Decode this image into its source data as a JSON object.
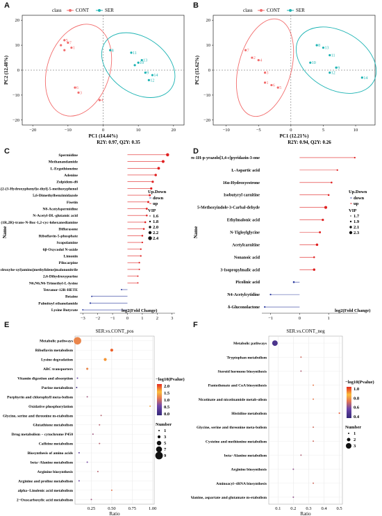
{
  "panel_labels": {
    "A": "A",
    "B": "B",
    "C": "C",
    "D": "D",
    "E": "E",
    "F": "F"
  },
  "colors": {
    "cont": "#f26b6b",
    "ser": "#1bb3b3",
    "text": "#111111"
  },
  "pca": [
    {
      "id": "A",
      "legend_title": "class",
      "legend_cont": "CONT",
      "legend_ser": "SER",
      "xlabel": "PC1 (14.44%)",
      "ylabel": "PC2 (12.48%)",
      "stats": "R2Y: 0.97, Q2Y: 0.35",
      "x_ticks": [
        "−20",
        "−10",
        "0",
        "10",
        "20"
      ],
      "y_ticks": [
        "20",
        "10",
        "0",
        "−10",
        "−20"
      ],
      "cont_points": [
        {
          "label": "5",
          "x": -11,
          "y": 12
        },
        {
          "label": "7",
          "x": -10,
          "y": 11
        },
        {
          "label": "1",
          "x": -9,
          "y": 9
        },
        {
          "label": "6",
          "x": -8,
          "y": -7
        },
        {
          "label": "3",
          "x": -7,
          "y": -9
        },
        {
          "label": "4",
          "x": -1,
          "y": -12
        },
        {
          "label": "",
          "x": -12,
          "y": 10
        },
        {
          "label": "",
          "x": -11,
          "y": 8
        }
      ],
      "ser_points": [
        {
          "label": "8",
          "x": 2,
          "y": 8
        },
        {
          "label": "11",
          "x": 8,
          "y": 7
        },
        {
          "label": "13",
          "x": 11,
          "y": 4
        },
        {
          "label": "10",
          "x": 10,
          "y": 3
        },
        {
          "label": "9",
          "x": 12,
          "y": -1
        },
        {
          "label": "14",
          "x": 14,
          "y": -2
        },
        {
          "label": "12",
          "x": 13,
          "y": -4
        },
        {
          "label": "",
          "x": 9,
          "y": 2
        }
      ]
    },
    {
      "id": "B",
      "legend_title": "class",
      "legend_cont": "CONT",
      "legend_ser": "SER",
      "xlabel": "PC1 (12.21%)",
      "ylabel": "PC2 (15.62%)",
      "stats": "R2Y: 0.94, Q2Y: 0.26",
      "x_ticks": [
        "−10",
        "−5",
        "0",
        "5",
        "10"
      ],
      "y_ticks": [
        "20",
        "10",
        "0",
        "−10",
        "−20"
      ],
      "cont_points": [
        {
          "label": "7",
          "x": -7,
          "y": 8
        },
        {
          "label": "2",
          "x": -6,
          "y": 5
        },
        {
          "label": "4",
          "x": -5,
          "y": 4
        },
        {
          "label": "3",
          "x": -4,
          "y": -1
        },
        {
          "label": "1",
          "x": -4,
          "y": -5
        },
        {
          "label": "6",
          "x": -3,
          "y": -6
        },
        {
          "label": "5",
          "x": -2,
          "y": -7
        }
      ],
      "ser_points": [
        {
          "label": "8",
          "x": 4,
          "y": 10
        },
        {
          "label": "13",
          "x": 5,
          "y": 9
        },
        {
          "label": "11",
          "x": 6,
          "y": 6
        },
        {
          "label": "10",
          "x": 3,
          "y": 3
        },
        {
          "label": "9",
          "x": 7,
          "y": 1
        },
        {
          "label": "12",
          "x": 6,
          "y": -1
        },
        {
          "label": "14",
          "x": 11,
          "y": -3
        }
      ]
    }
  ],
  "lollipop": [
    {
      "id": "C",
      "y_axis_label": "Name",
      "x_axis_label": "log2(Fold Change)",
      "x_ticks": [
        "−3",
        "−2",
        "−1",
        "0",
        "1",
        "2",
        "3"
      ],
      "x_range": [
        -3.2,
        3.2
      ],
      "legend_updown_title": "Up.Down",
      "legend_down": "down",
      "legend_up": "up",
      "legend_vip_title": "VIP",
      "vip_values": [
        "1.6",
        "1.8",
        "2.0",
        "2.2",
        "2.4"
      ],
      "items": [
        {
          "name": "Spermidine",
          "value": 2.7,
          "vip": 2.4
        },
        {
          "name": "Methanandamide",
          "value": 2.4,
          "vip": 2.3
        },
        {
          "name": "L-Ergothioneine",
          "value": 2.1,
          "vip": 2.2
        },
        {
          "name": "Adenine",
          "value": 1.9,
          "vip": 2.1
        },
        {
          "name": "Zolpidem-d6",
          "value": 1.7,
          "vip": 2.0
        },
        {
          "name": "3-[2-(3-Hydroxyphenyl)e-thyl]-5-methoxyphenol",
          "value": 1.6,
          "vip": 2.0
        },
        {
          "name": "5,6-Dimethylbenzimidazole",
          "value": 1.5,
          "vip": 1.9
        },
        {
          "name": "Fisetin",
          "value": 1.4,
          "vip": 1.9
        },
        {
          "name": "N8-Acetylspermidine",
          "value": 1.3,
          "vip": 1.9
        },
        {
          "name": "N-Acetyl-DL-glutamic acid",
          "value": 1.3,
          "vip": 1.8
        },
        {
          "name": "(1R,2R)-trans-N-Boc-1,2-cyc-lohexanediamine",
          "value": 1.2,
          "vip": 1.8
        },
        {
          "name": "Diflorasone",
          "value": 1.1,
          "vip": 1.8
        },
        {
          "name": "Riboflavin-5-phosphate",
          "value": 1.0,
          "vip": 1.8
        },
        {
          "name": "Scopolamine",
          "value": 1.0,
          "vip": 1.7
        },
        {
          "name": "6β-Oxycodol N-oxide",
          "value": 0.9,
          "vip": 1.7
        },
        {
          "name": "Limonin",
          "value": 0.9,
          "vip": 1.7
        },
        {
          "name": "Pilocarpine",
          "value": 0.8,
          "vip": 1.7
        },
        {
          "name": "2-[[methyl(2,3,4,5,6-pentahydroxyhe-xyl)amino]methylidene]malononitrile",
          "value": 0.8,
          "vip": 1.6
        },
        {
          "name": "2,6-Dihydroxypurine",
          "value": 0.7,
          "vip": 1.6
        },
        {
          "name": "N6,N6,N6-Trimethyl-L-lysine",
          "value": 0.7,
          "vip": 1.6
        },
        {
          "name": "Tetranor-12R-HETE",
          "value": -0.4,
          "vip": 1.6
        },
        {
          "name": "Betaine",
          "value": -2.4,
          "vip": 1.6
        },
        {
          "name": "Palmitoyl ethanolamide",
          "value": -2.5,
          "vip": 1.7
        },
        {
          "name": "Lysine Butyrate",
          "value": -3.0,
          "vip": 1.6
        }
      ]
    },
    {
      "id": "D",
      "y_axis_label": "Name",
      "x_axis_label": "log2(Fold Change)",
      "x_ticks": [
        "−1",
        "0",
        "1"
      ],
      "x_range": [
        -1.3,
        2.0
      ],
      "legend_updown_title": "Up.Down",
      "legend_down": "down",
      "legend_up": "up",
      "legend_vip_title": "VIP",
      "vip_values": [
        "1.7",
        "1.9",
        "2.1",
        "2.3"
      ],
      "items": [
        {
          "name": "4,5-diphenyl-2,3-dihydro-1H-p-yrazolo[3,4-c]pyridazin-3-one",
          "value": 1.9,
          "vip": 1.7
        },
        {
          "name": "L-Aspartic acid",
          "value": 1.3,
          "vip": 1.7
        },
        {
          "name": "16α-Hydroxyestrone",
          "value": 1.1,
          "vip": 1.8
        },
        {
          "name": "Isobutyryl carnitine",
          "value": 1.0,
          "vip": 1.8
        },
        {
          "name": "5-Methoxyindole-3-Carbal-dehyde",
          "value": 0.9,
          "vip": 2.3
        },
        {
          "name": "Ethylmalonic acid",
          "value": 0.8,
          "vip": 2.0
        },
        {
          "name": "N-Tigloylglycine",
          "value": 0.7,
          "vip": 1.9
        },
        {
          "name": "Acetylcarnitine",
          "value": 0.6,
          "vip": 2.1
        },
        {
          "name": "Nonanoic acid",
          "value": 0.5,
          "vip": 1.8
        },
        {
          "name": "3-Isopropylmalic acid",
          "value": 0.5,
          "vip": 2.1
        },
        {
          "name": "Picolinic acid",
          "value": -0.2,
          "vip": 1.8
        },
        {
          "name": "N4-Acetylcytidine",
          "value": -1.0,
          "vip": 1.7
        },
        {
          "name": "δ-Gluconolactone",
          "value": -1.2,
          "vip": 1.7
        }
      ]
    }
  ],
  "bubble": [
    {
      "id": "E",
      "title": "SER.vs.CONT_pos",
      "x_axis_label": "Ratio",
      "x_ticks": [
        "0.25",
        "0.50",
        "0.75",
        "1.00"
      ],
      "x_range": [
        0.05,
        1.02
      ],
      "color_title": "−log10(Pvalue)",
      "color_ticks": [
        "2.0",
        "1.5",
        "1.0",
        "0.5",
        "0.0"
      ],
      "color_range": [
        0,
        2.2
      ],
      "size_title": "Number",
      "size_values": [
        "1",
        "3",
        "5",
        "7",
        "9"
      ],
      "items": [
        {
          "name": "Metabolic pathways",
          "ratio": 0.08,
          "p": 1.3,
          "n": 9
        },
        {
          "name": "Riboflavin metabolism",
          "ratio": 0.5,
          "p": 2.0,
          "n": 3
        },
        {
          "name": "Lysine degradation",
          "ratio": 0.42,
          "p": 1.8,
          "n": 3
        },
        {
          "name": "ABC transporters",
          "ratio": 0.2,
          "p": 1.3,
          "n": 2
        },
        {
          "name": "Vitamin digestion and absorption",
          "ratio": 0.08,
          "p": 0.5,
          "n": 1
        },
        {
          "name": "Purine metabolism",
          "ratio": 0.07,
          "p": 0.2,
          "n": 1
        },
        {
          "name": "Porphyrin and chlorophyll meta-bolism",
          "ratio": 0.2,
          "p": 0.9,
          "n": 1
        },
        {
          "name": "Oxidative phosphorylation",
          "ratio": 0.97,
          "p": 1.5,
          "n": 1
        },
        {
          "name": "Glycine, serine and threonine m-etabolism",
          "ratio": 0.37,
          "p": 1.0,
          "n": 1
        },
        {
          "name": "Glutathione metabolism",
          "ratio": 0.35,
          "p": 1.0,
          "n": 1
        },
        {
          "name": "Drug metabolism − cytochrome P450",
          "ratio": 0.27,
          "p": 0.9,
          "n": 1
        },
        {
          "name": "Caffeine metabolism",
          "ratio": 0.35,
          "p": 1.0,
          "n": 1
        },
        {
          "name": "Biosynthesis of amino acids",
          "ratio": 0.1,
          "p": 0.5,
          "n": 1
        },
        {
          "name": "beta−Alanine metabolism",
          "ratio": 0.2,
          "p": 0.7,
          "n": 1
        },
        {
          "name": "Arginine biosynthesis",
          "ratio": 0.33,
          "p": 1.0,
          "n": 1
        },
        {
          "name": "Arginine and proline metabolism",
          "ratio": 0.1,
          "p": 0.6,
          "n": 1
        },
        {
          "name": "alpha−Linolenic acid metabolism",
          "ratio": 0.5,
          "p": 1.2,
          "n": 1
        },
        {
          "name": "2−Oxocarboxylic acid metabolism",
          "ratio": 0.25,
          "p": 0.9,
          "n": 1
        }
      ]
    },
    {
      "id": "F",
      "title": "SER.vs.CONT_neg",
      "x_axis_label": "Ratio",
      "x_ticks": [
        "0.1",
        "0.2",
        "0.3",
        "0.4",
        "0.5"
      ],
      "x_range": [
        0.04,
        0.52
      ],
      "color_title": "−log10(Pvalue)",
      "color_ticks": [
        "1.0",
        "0.8",
        "0.6",
        "0.4"
      ],
      "color_range": [
        0.3,
        1.1
      ],
      "size_title": "Number",
      "size_values": [
        "1",
        "2",
        "3"
      ],
      "items": [
        {
          "name": "Metabolic pathways",
          "ratio": 0.08,
          "p": 0.4,
          "n": 3
        },
        {
          "name": "Tryptophan metabolism",
          "ratio": 0.25,
          "p": 0.7,
          "n": 1
        },
        {
          "name": "Steroid hormone biosynthesis",
          "ratio": 0.25,
          "p": 0.65,
          "n": 1
        },
        {
          "name": "Pantothenate and CoA biosynthesis",
          "ratio": 0.33,
          "p": 0.75,
          "n": 1
        },
        {
          "name": "Nicotinate and nicotinamide metab-olism",
          "ratio": 0.33,
          "p": 0.75,
          "n": 1
        },
        {
          "name": "Histidine metabolism",
          "ratio": 0.5,
          "p": 1.05,
          "n": 1
        },
        {
          "name": "Glycine, serine and threonine meta-bolism",
          "ratio": 0.33,
          "p": 0.7,
          "n": 1
        },
        {
          "name": "Cysteine and methionine metabolism",
          "ratio": 0.33,
          "p": 0.7,
          "n": 1
        },
        {
          "name": "beta−Alanine metabolism",
          "ratio": 0.25,
          "p": 0.65,
          "n": 1
        },
        {
          "name": "Arginine biosynthesis",
          "ratio": 0.2,
          "p": 0.6,
          "n": 1
        },
        {
          "name": "Aminoacyl−tRNA biosynthesis",
          "ratio": 0.33,
          "p": 0.7,
          "n": 1
        },
        {
          "name": "Alanine, aspartate and glutamate m-etabolism",
          "ratio": 0.2,
          "p": 0.6,
          "n": 1
        }
      ]
    }
  ]
}
